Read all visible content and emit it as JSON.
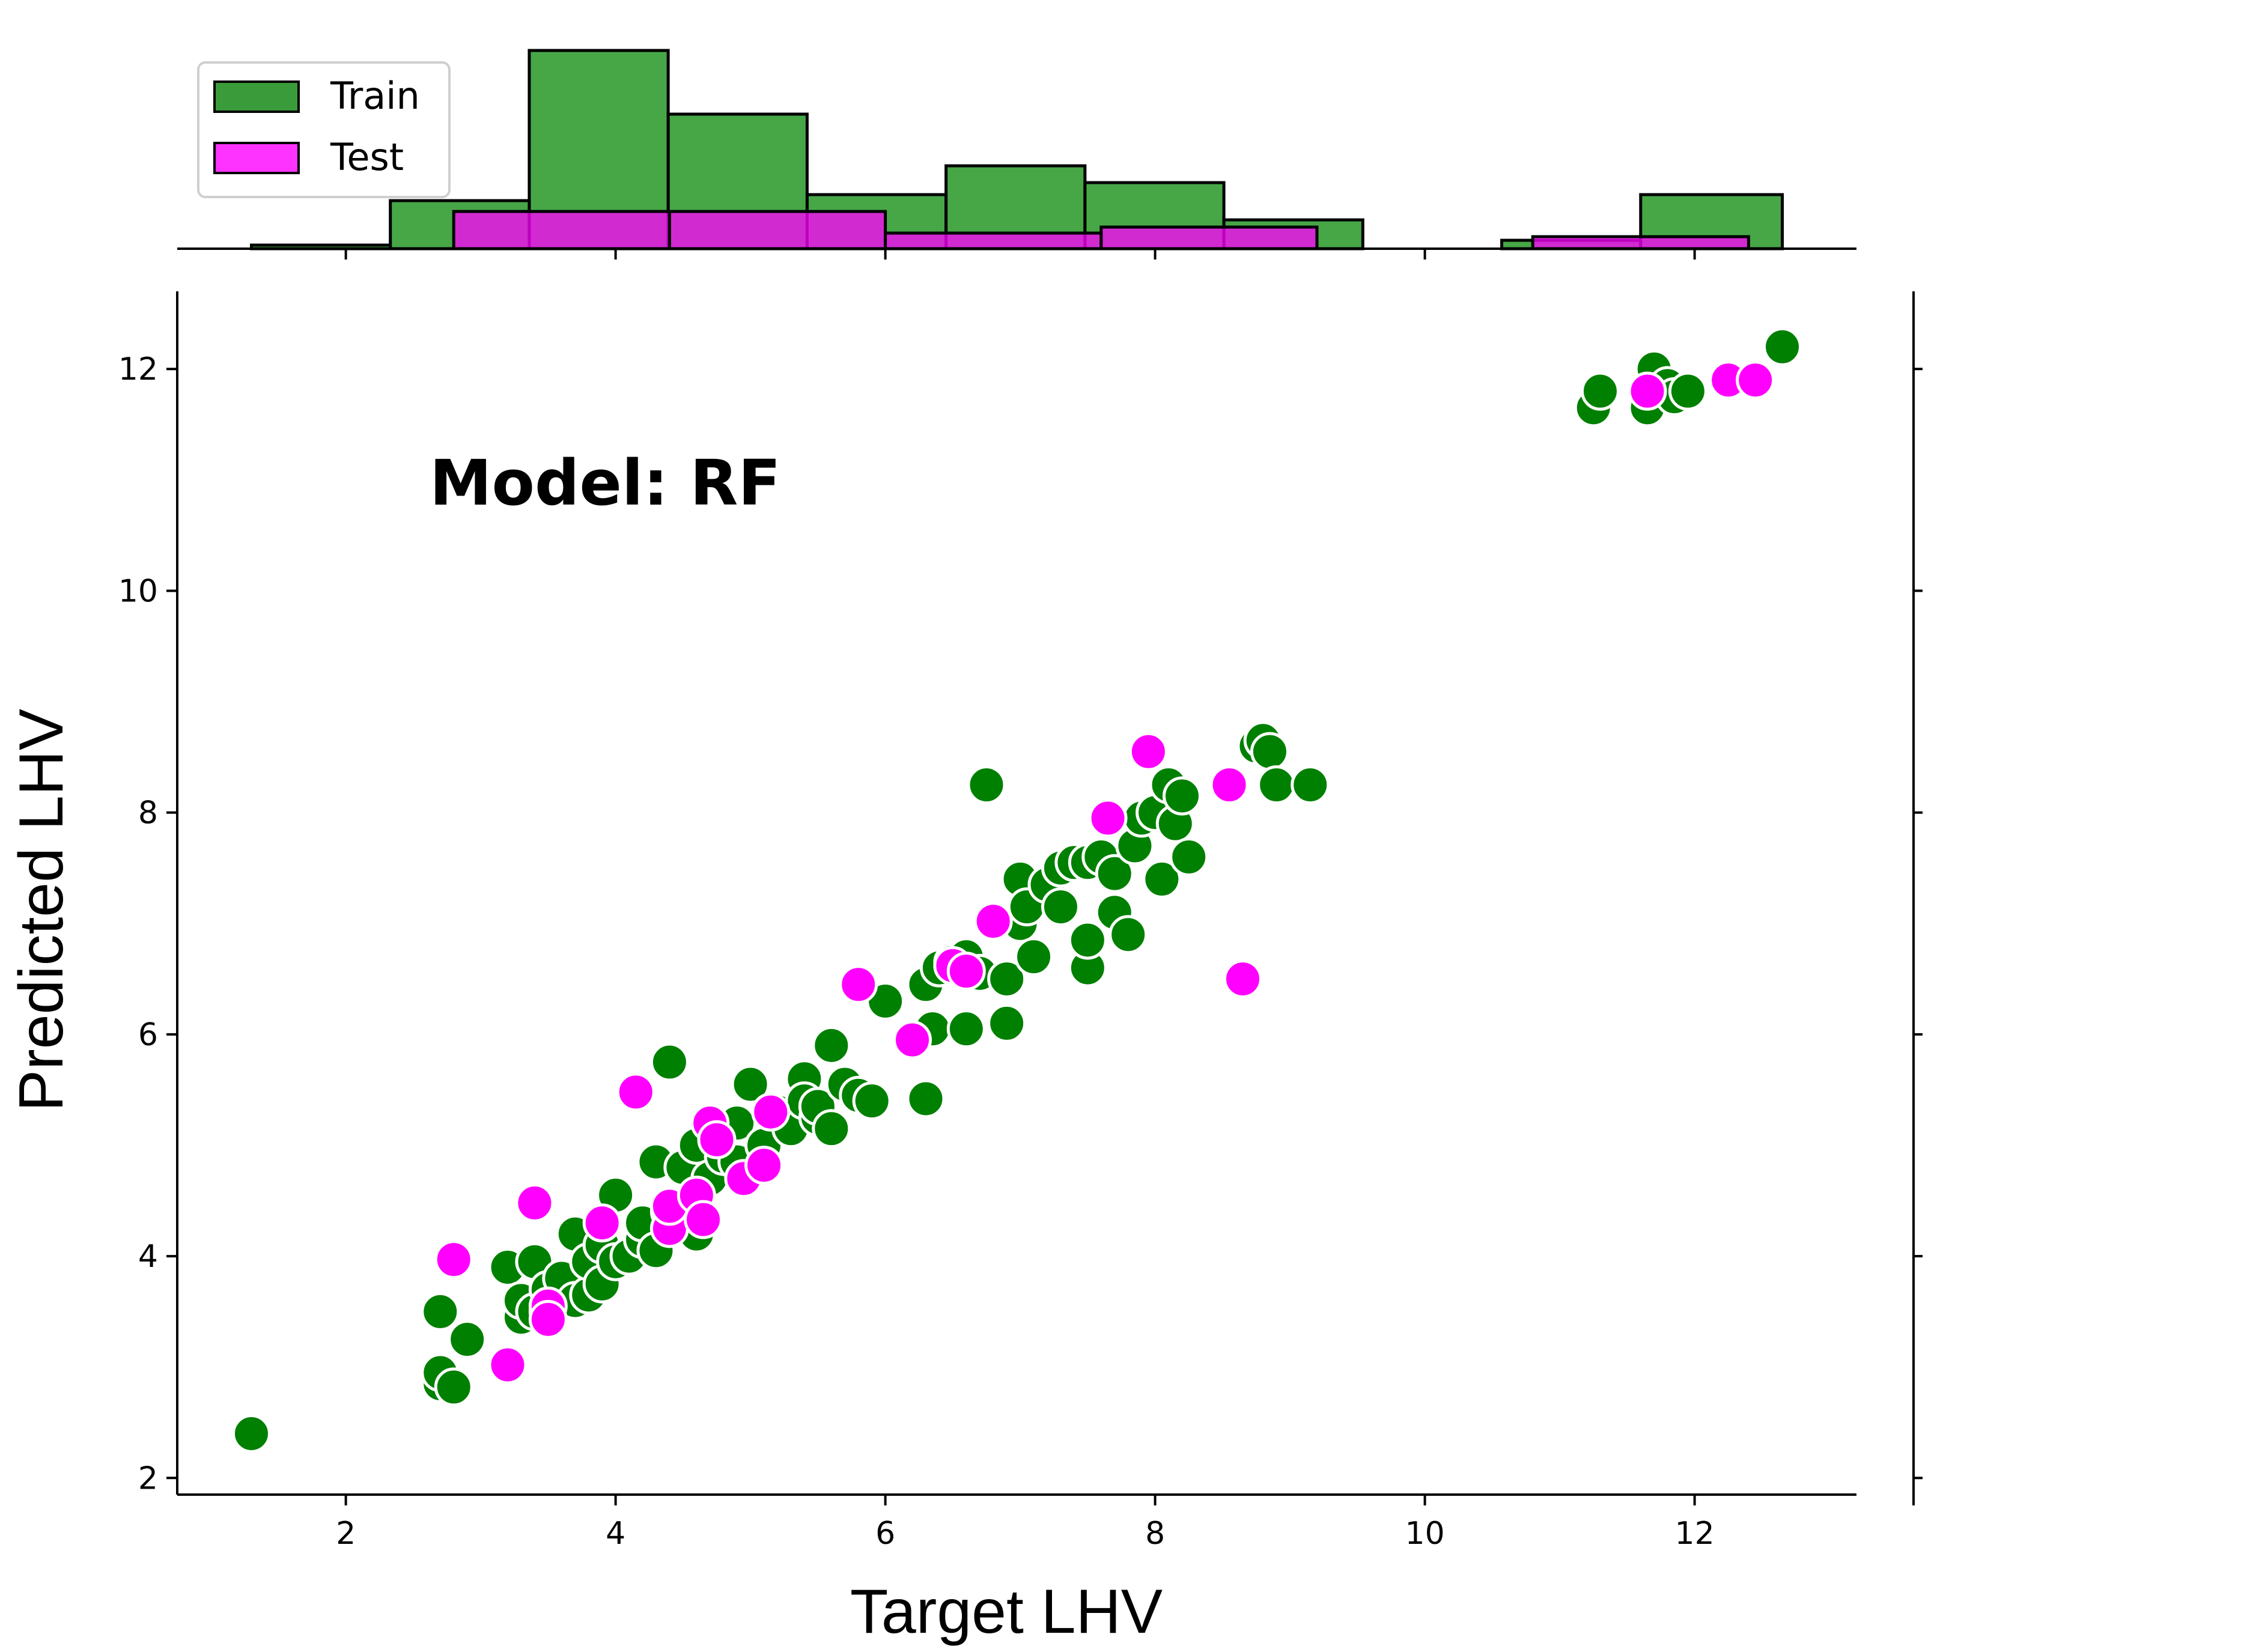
{
  "chart_data": {
    "type": "scatter",
    "title": "",
    "xlabel": "Target LHV",
    "ylabel": "Predicted LHV",
    "annotation": "Model: RF",
    "xlim": [
      0.75,
      13.2
    ],
    "ylim": [
      1.85,
      12.7
    ],
    "x_ticks": [
      2,
      4,
      6,
      8,
      10,
      12
    ],
    "y_ticks": [
      2,
      4,
      6,
      8,
      10,
      12
    ],
    "grid": false,
    "legend_position": "top-left",
    "colors": {
      "Train": "#008000",
      "Test": "#ff00ff"
    },
    "series": [
      {
        "name": "Train",
        "points": [
          [
            1.3,
            2.4
          ],
          [
            2.7,
            2.85
          ],
          [
            2.7,
            2.95
          ],
          [
            2.8,
            2.82
          ],
          [
            2.7,
            3.5
          ],
          [
            2.9,
            3.25
          ],
          [
            3.2,
            3.9
          ],
          [
            3.3,
            3.45
          ],
          [
            3.3,
            3.6
          ],
          [
            3.4,
            3.95
          ],
          [
            3.4,
            3.5
          ],
          [
            3.5,
            3.7
          ],
          [
            3.5,
            3.5
          ],
          [
            3.6,
            3.8
          ],
          [
            3.7,
            3.6
          ],
          [
            3.7,
            4.2
          ],
          [
            3.8,
            3.65
          ],
          [
            3.8,
            3.95
          ],
          [
            3.9,
            4.1
          ],
          [
            3.9,
            3.75
          ],
          [
            4.0,
            3.95
          ],
          [
            4.0,
            4.55
          ],
          [
            4.1,
            4.0
          ],
          [
            4.2,
            4.15
          ],
          [
            4.2,
            4.3
          ],
          [
            4.3,
            4.05
          ],
          [
            4.3,
            4.85
          ],
          [
            4.4,
            4.4
          ],
          [
            4.4,
            5.75
          ],
          [
            4.5,
            4.8
          ],
          [
            4.5,
            4.3
          ],
          [
            4.6,
            4.2
          ],
          [
            4.6,
            5.0
          ],
          [
            4.7,
            4.7
          ],
          [
            4.8,
            4.9
          ],
          [
            4.9,
            5.2
          ],
          [
            4.9,
            4.85
          ],
          [
            5.0,
            5.55
          ],
          [
            5.1,
            5.0
          ],
          [
            5.2,
            5.3
          ],
          [
            5.3,
            5.15
          ],
          [
            5.4,
            5.6
          ],
          [
            5.4,
            5.4
          ],
          [
            5.5,
            5.25
          ],
          [
            5.5,
            5.35
          ],
          [
            5.6,
            5.9
          ],
          [
            5.6,
            5.15
          ],
          [
            5.7,
            5.55
          ],
          [
            5.8,
            5.45
          ],
          [
            5.9,
            5.4
          ],
          [
            6.0,
            6.3
          ],
          [
            6.3,
            6.45
          ],
          [
            6.3,
            5.42
          ],
          [
            6.35,
            6.05
          ],
          [
            6.4,
            6.6
          ],
          [
            6.5,
            6.65
          ],
          [
            6.6,
            6.7
          ],
          [
            6.6,
            6.05
          ],
          [
            6.7,
            6.55
          ],
          [
            6.75,
            8.25
          ],
          [
            6.9,
            6.5
          ],
          [
            6.9,
            6.1
          ],
          [
            7.0,
            7.0
          ],
          [
            7.0,
            7.4
          ],
          [
            7.05,
            7.15
          ],
          [
            7.1,
            6.7
          ],
          [
            7.2,
            7.35
          ],
          [
            7.3,
            7.15
          ],
          [
            7.3,
            7.5
          ],
          [
            7.4,
            7.55
          ],
          [
            7.5,
            7.55
          ],
          [
            7.5,
            6.6
          ],
          [
            7.5,
            6.85
          ],
          [
            7.6,
            7.6
          ],
          [
            7.7,
            7.45
          ],
          [
            7.7,
            7.1
          ],
          [
            7.8,
            6.9
          ],
          [
            7.85,
            7.7
          ],
          [
            7.9,
            7.95
          ],
          [
            8.0,
            8.0
          ],
          [
            8.05,
            7.4
          ],
          [
            8.1,
            8.25
          ],
          [
            8.15,
            7.9
          ],
          [
            8.2,
            8.15
          ],
          [
            8.25,
            7.6
          ],
          [
            8.75,
            8.6
          ],
          [
            8.8,
            8.65
          ],
          [
            8.85,
            8.55
          ],
          [
            8.9,
            8.25
          ],
          [
            9.15,
            8.25
          ],
          [
            11.25,
            11.65
          ],
          [
            11.3,
            11.8
          ],
          [
            11.65,
            11.65
          ],
          [
            11.7,
            12.0
          ],
          [
            11.8,
            11.85
          ],
          [
            11.85,
            11.75
          ],
          [
            11.95,
            11.8
          ],
          [
            12.25,
            11.9
          ],
          [
            12.65,
            12.2
          ]
        ]
      },
      {
        "name": "Test",
        "points": [
          [
            2.8,
            3.97
          ],
          [
            3.2,
            3.02
          ],
          [
            3.4,
            4.48
          ],
          [
            3.5,
            3.55
          ],
          [
            3.5,
            3.43
          ],
          [
            3.9,
            4.3
          ],
          [
            4.15,
            5.48
          ],
          [
            4.4,
            4.25
          ],
          [
            4.4,
            4.45
          ],
          [
            4.6,
            4.55
          ],
          [
            4.65,
            4.33
          ],
          [
            4.7,
            5.2
          ],
          [
            4.75,
            5.05
          ],
          [
            4.95,
            4.7
          ],
          [
            5.1,
            4.82
          ],
          [
            5.15,
            5.3
          ],
          [
            5.8,
            6.45
          ],
          [
            6.2,
            5.95
          ],
          [
            6.5,
            6.62
          ],
          [
            6.6,
            6.57
          ],
          [
            6.8,
            7.02
          ],
          [
            7.65,
            7.95
          ],
          [
            7.95,
            8.55
          ],
          [
            8.55,
            8.25
          ],
          [
            8.65,
            6.5
          ],
          [
            11.65,
            11.8
          ],
          [
            12.25,
            11.9
          ],
          [
            12.45,
            11.9
          ]
        ]
      }
    ],
    "histogram": {
      "bin_edges": [
        1.3,
        2.33,
        3.36,
        4.39,
        5.42,
        6.45,
        7.48,
        8.51,
        9.54,
        10.57,
        11.6,
        12.65
      ],
      "Train_counts": [
        0.3,
        4,
        16.5,
        11.2,
        4.5,
        6.9,
        5.5,
        2.4,
        0,
        0.7,
        4.5
      ],
      "Test_bin_edges": [
        2.8,
        4.4,
        6.0,
        7.6,
        9.2,
        10.8,
        12.4
      ],
      "Test_counts": [
        3.1,
        3.1,
        1.3,
        1.8,
        0,
        1.0
      ]
    }
  }
}
